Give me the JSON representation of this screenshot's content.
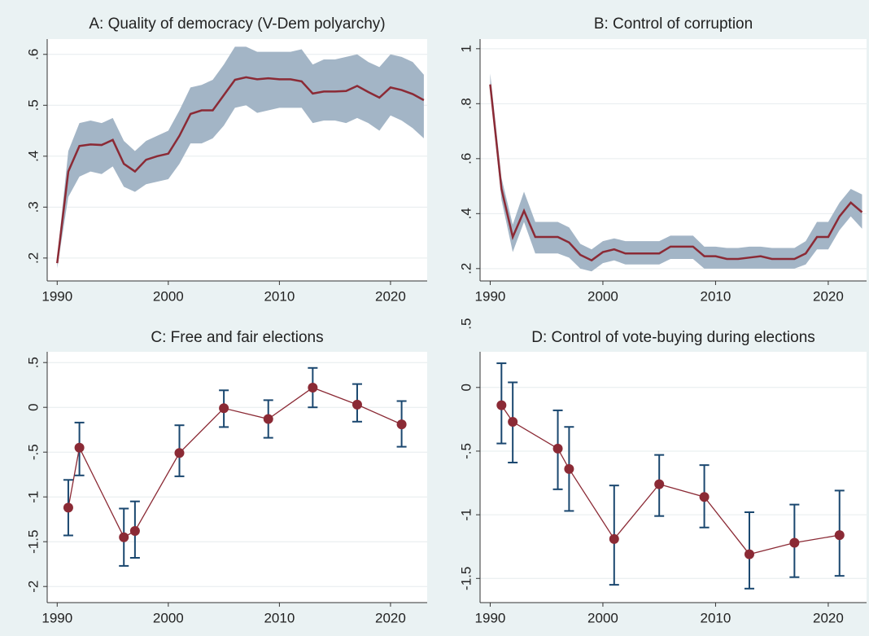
{
  "chart_data": [
    {
      "type": "band",
      "title": "A: Quality of democracy (V-Dem polyarchy)",
      "x": [
        1990,
        1991,
        1992,
        1993,
        1994,
        1995,
        1996,
        1997,
        1998,
        1999,
        2000,
        2001,
        2002,
        2003,
        2004,
        2005,
        2006,
        2007,
        2008,
        2009,
        2010,
        2011,
        2012,
        2013,
        2014,
        2015,
        2016,
        2017,
        2018,
        2019,
        2020,
        2021,
        2022,
        2023
      ],
      "values": [
        0.19,
        0.37,
        0.42,
        0.423,
        0.422,
        0.432,
        0.385,
        0.37,
        0.393,
        0.4,
        0.405,
        0.44,
        0.483,
        0.49,
        0.49,
        0.52,
        0.55,
        0.555,
        0.551,
        0.553,
        0.551,
        0.551,
        0.547,
        0.523,
        0.527,
        0.527,
        0.528,
        0.538,
        0.526,
        0.515,
        0.535,
        0.53,
        0.522,
        0.51
      ],
      "lower": [
        0.18,
        0.32,
        0.36,
        0.37,
        0.365,
        0.38,
        0.34,
        0.33,
        0.345,
        0.35,
        0.355,
        0.385,
        0.425,
        0.425,
        0.435,
        0.46,
        0.495,
        0.5,
        0.485,
        0.49,
        0.495,
        0.495,
        0.495,
        0.465,
        0.47,
        0.47,
        0.465,
        0.475,
        0.465,
        0.45,
        0.48,
        0.47,
        0.455,
        0.435
      ],
      "upper": [
        0.2,
        0.41,
        0.465,
        0.47,
        0.465,
        0.475,
        0.43,
        0.41,
        0.43,
        0.44,
        0.45,
        0.49,
        0.535,
        0.54,
        0.55,
        0.58,
        0.615,
        0.615,
        0.605,
        0.605,
        0.605,
        0.605,
        0.61,
        0.58,
        0.59,
        0.59,
        0.595,
        0.6,
        0.585,
        0.575,
        0.6,
        0.595,
        0.585,
        0.56
      ],
      "color": "#8b2a35",
      "interval_color": "#a3b5c6",
      "xlim": [
        1989.1,
        2023.3
      ],
      "xticks": [
        1990,
        2000,
        2010,
        2020
      ],
      "ylim": [
        0.155,
        0.63
      ],
      "yticks": [
        {
          "value": 0.2,
          "label": ".2"
        },
        {
          "value": 0.3,
          "label": ".3"
        },
        {
          "value": 0.4,
          "label": ".4"
        },
        {
          "value": 0.5,
          "label": ".5"
        },
        {
          "value": 0.6,
          "label": ".6"
        }
      ],
      "grid": true
    },
    {
      "type": "band",
      "title": "B: Control of corruption",
      "x": [
        1990,
        1991,
        1992,
        1993,
        1994,
        1995,
        1996,
        1997,
        1998,
        1999,
        2000,
        2001,
        2002,
        2003,
        2004,
        2005,
        2006,
        2007,
        2008,
        2009,
        2010,
        2011,
        2012,
        2013,
        2014,
        2015,
        2016,
        2017,
        2018,
        2019,
        2020,
        2021,
        2022,
        2023
      ],
      "values": [
        0.87,
        0.49,
        0.315,
        0.41,
        0.315,
        0.315,
        0.315,
        0.295,
        0.25,
        0.23,
        0.26,
        0.27,
        0.255,
        0.255,
        0.255,
        0.255,
        0.28,
        0.28,
        0.28,
        0.245,
        0.245,
        0.235,
        0.235,
        0.24,
        0.245,
        0.235,
        0.235,
        0.235,
        0.255,
        0.315,
        0.315,
        0.39,
        0.44,
        0.405
      ],
      "lower": [
        0.85,
        0.45,
        0.26,
        0.37,
        0.255,
        0.255,
        0.255,
        0.24,
        0.2,
        0.19,
        0.22,
        0.23,
        0.215,
        0.215,
        0.215,
        0.215,
        0.235,
        0.235,
        0.235,
        0.2,
        0.2,
        0.2,
        0.2,
        0.2,
        0.2,
        0.2,
        0.2,
        0.2,
        0.215,
        0.27,
        0.27,
        0.34,
        0.39,
        0.345
      ],
      "upper": [
        0.91,
        0.53,
        0.36,
        0.48,
        0.37,
        0.37,
        0.37,
        0.35,
        0.29,
        0.27,
        0.3,
        0.31,
        0.3,
        0.3,
        0.3,
        0.3,
        0.32,
        0.32,
        0.32,
        0.28,
        0.28,
        0.275,
        0.275,
        0.28,
        0.28,
        0.275,
        0.275,
        0.275,
        0.3,
        0.37,
        0.37,
        0.44,
        0.49,
        0.47
      ],
      "color": "#8b2a35",
      "interval_color": "#a3b5c6",
      "xlim": [
        1989.1,
        2023.4
      ],
      "xticks": [
        1990,
        2000,
        2010,
        2020
      ],
      "ylim": [
        0.155,
        1.035
      ],
      "yticks": [
        {
          "value": 0.2,
          "label": ".2"
        },
        {
          "value": 0.4,
          "label": ".4"
        },
        {
          "value": 0.6,
          "label": ".6"
        },
        {
          "value": 0.8,
          "label": ".8"
        },
        1
      ],
      "grid": true
    },
    {
      "type": "errorbar",
      "title": "C: Free and fair elections",
      "x": [
        1991,
        1992,
        1996,
        1997,
        2001,
        2005,
        2009,
        2013,
        2017,
        2021
      ],
      "values": [
        -1.12,
        -0.45,
        -1.45,
        -1.38,
        -0.51,
        -0.01,
        -0.13,
        0.22,
        0.03,
        -0.19
      ],
      "lower": [
        -1.43,
        -0.76,
        -1.77,
        -1.68,
        -0.77,
        -0.22,
        -0.34,
        0,
        -0.16,
        -0.44
      ],
      "upper": [
        -0.81,
        -0.17,
        -1.13,
        -1.05,
        -0.2,
        0.19,
        0.08,
        0.44,
        0.26,
        0.07
      ],
      "color": "#8b2a35",
      "interval_color": "#1a476f",
      "xlim": [
        1989.1,
        2023.3
      ],
      "xticks": [
        1990,
        2000,
        2010,
        2020
      ],
      "ylim": [
        -2.18,
        0.62
      ],
      "yticks": [
        -2,
        {
          "value": -1.5,
          "label": "-1.5"
        },
        -1,
        {
          "value": -0.5,
          "label": "-.5"
        },
        0,
        {
          "value": 0.5,
          "label": ".5"
        }
      ],
      "grid": true
    },
    {
      "type": "errorbar",
      "title": "D: Control of vote-buying during elections",
      "x": [
        1991,
        1992,
        1996,
        1997,
        2001,
        2005,
        2009,
        2013,
        2017,
        2021
      ],
      "values": [
        -0.14,
        -0.27,
        -0.48,
        -0.64,
        -1.19,
        -0.76,
        -0.86,
        -1.31,
        -1.22,
        -1.16
      ],
      "lower": [
        -0.44,
        -0.59,
        -0.8,
        -0.97,
        -1.55,
        -1.01,
        -1.1,
        -1.58,
        -1.49,
        -1.48
      ],
      "upper": [
        0.19,
        0.04,
        -0.18,
        -0.31,
        -0.77,
        -0.53,
        -0.61,
        -0.98,
        -0.92,
        -0.81
      ],
      "color": "#8b2a35",
      "interval_color": "#1a476f",
      "xlim": [
        1989.1,
        2023.4
      ],
      "xticks": [
        1990,
        2000,
        2010,
        2020
      ],
      "ylim": [
        -1.69,
        0.28
      ],
      "yticks": [
        {
          "value": -1.5,
          "label": "-1.5"
        },
        -1,
        {
          "value": -0.5,
          "label": "-.5"
        },
        0,
        {
          "value": 0.5,
          "label": ".5"
        }
      ],
      "grid": true
    }
  ]
}
